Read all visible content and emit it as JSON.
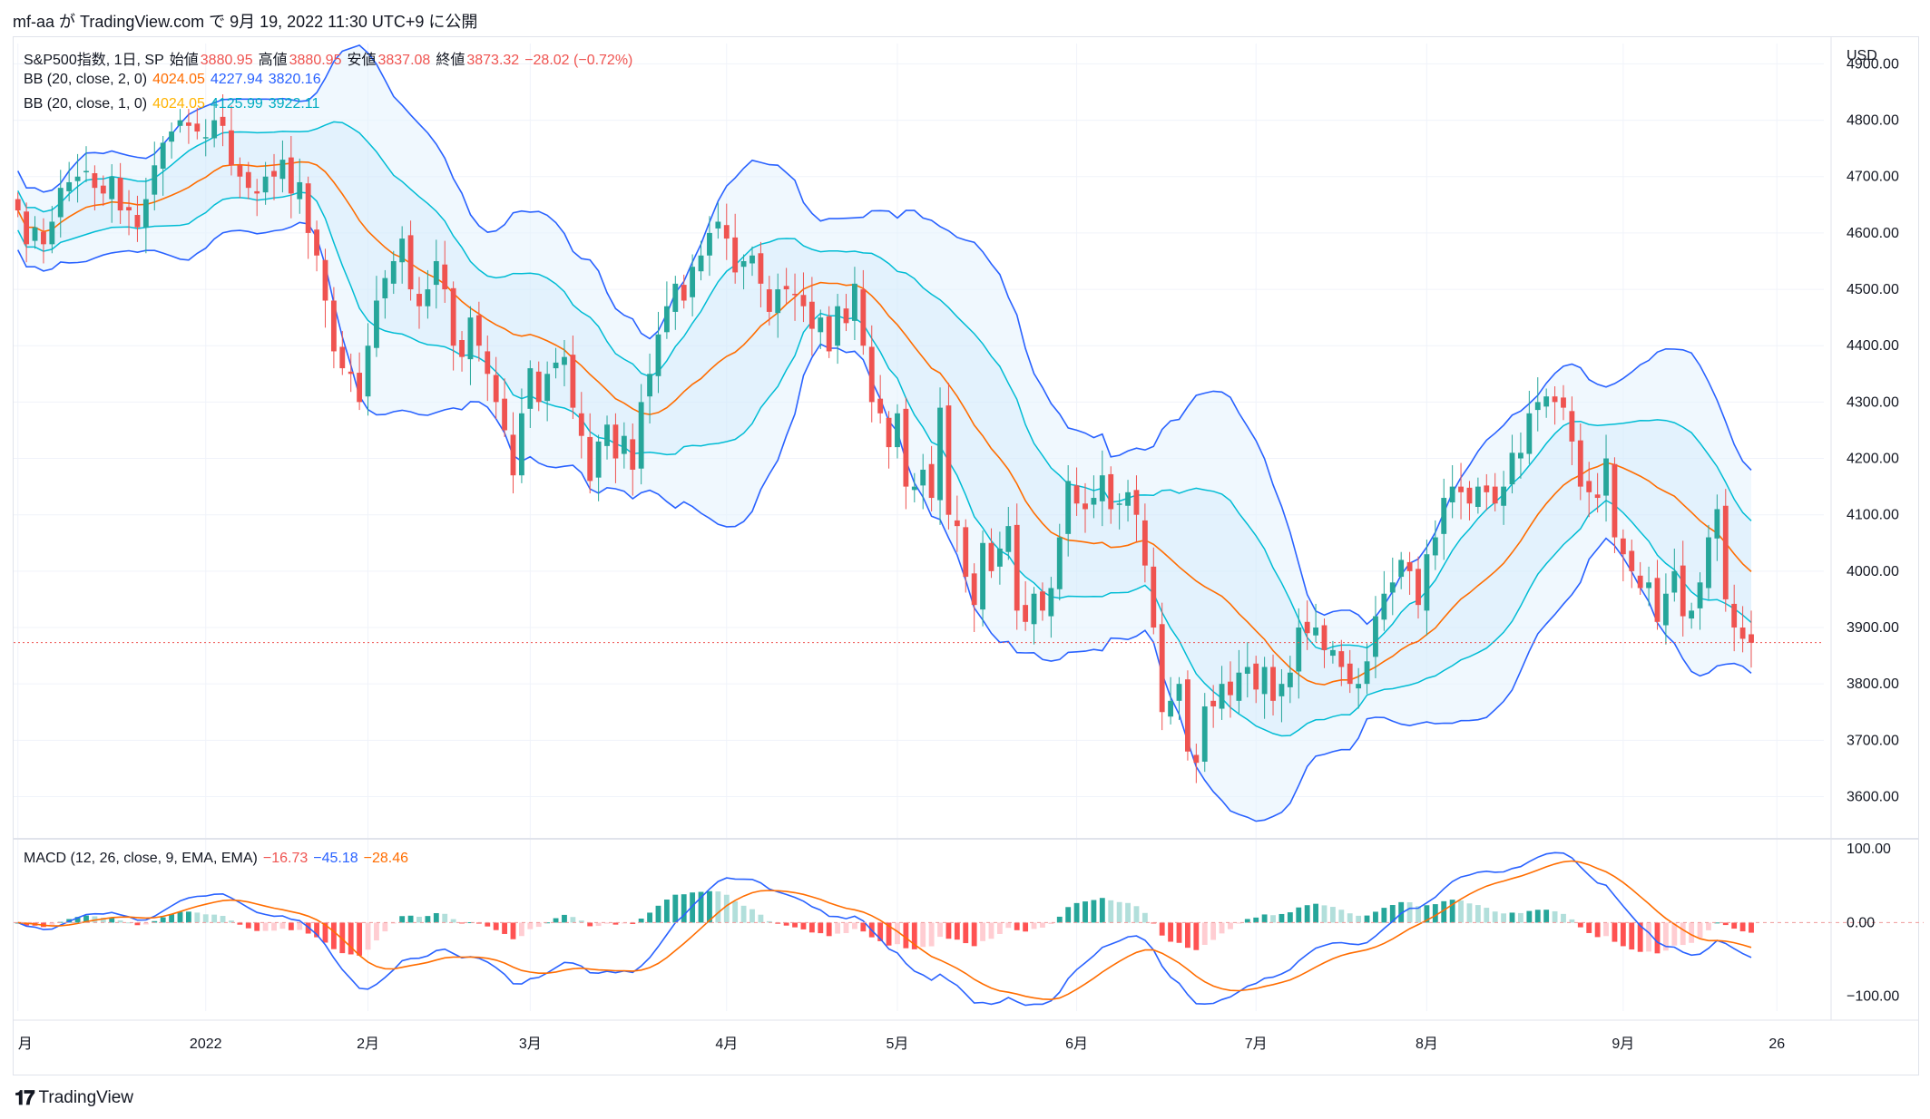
{
  "header": {
    "text": "mf-aa が TradingView.com で 9月 19, 2022 11:30 UTC+9 に公開"
  },
  "footer": {
    "brand": "TradingView",
    "logo": "tv-logo-icon"
  },
  "legend": {
    "main": {
      "symbol": "S&P500指数, 1日, SP",
      "open_label": "始値",
      "open": "3880.95",
      "high_label": "高値",
      "high": "3880.95",
      "low_label": "安値",
      "low": "3837.08",
      "close_label": "終値",
      "close": "3873.32",
      "change": "−28.02 (−0.72%)"
    },
    "bb2": {
      "label": "BB (20, close, 2, 0)",
      "basis": "4024.05",
      "upper": "4227.94",
      "lower": "3820.16"
    },
    "bb1": {
      "label": "BB (20, close, 1, 0)",
      "basis": "4024.05",
      "upper": "4125.99",
      "lower": "3922.11"
    },
    "macd": {
      "label": "MACD (12, 26, close, 9, EMA, EMA)",
      "hist": "−16.73",
      "macd": "−45.18",
      "signal": "−28.46"
    }
  },
  "colors": {
    "up": "#26a69a",
    "down": "#ef5350",
    "basis": "#ff6d00",
    "band_outer": "#2962ff",
    "band_inner": "#00bcd4",
    "fill": "#e3f2fd",
    "hist_up_strong": "#26a69a",
    "hist_up_weak": "#b2dfdb",
    "hist_dn_strong": "#ff5252",
    "hist_dn_weak": "#ffcdd2",
    "macd_line": "#2962ff",
    "signal_line": "#ff6d00"
  },
  "chart_data": [
    {
      "type": "candlestick",
      "currency": "USD",
      "ylim": [
        3530,
        4920
      ],
      "yticks": [
        3600,
        3700,
        3800,
        3900,
        4000,
        4100,
        4200,
        4300,
        4400,
        4500,
        4600,
        4700,
        4800,
        4900
      ],
      "ytick_labels": [
        "3600.00",
        "3700.00",
        "3800.00",
        "3900.00",
        "4000.00",
        "4100.00",
        "4200.00",
        "4300.00",
        "4400.00",
        "4500.00",
        "4600.00",
        "4700.00",
        "4800.00",
        "4900.00"
      ],
      "xticks": [
        {
          "label": "月",
          "bar": 0
        },
        {
          "label": "2022",
          "bar": 22
        },
        {
          "label": "2月",
          "bar": 41
        },
        {
          "label": "3月",
          "bar": 60
        },
        {
          "label": "4月",
          "bar": 83
        },
        {
          "label": "5月",
          "bar": 103
        },
        {
          "label": "6月",
          "bar": 124
        },
        {
          "label": "7月",
          "bar": 145
        },
        {
          "label": "8月",
          "bar": 165
        },
        {
          "label": "9月",
          "bar": 188
        },
        {
          "label": "26",
          "bar": 206
        }
      ],
      "total_slots": 212,
      "last_price_line": 3873.32,
      "close": [
        4640,
        4580,
        4610,
        4580,
        4620,
        4680,
        4690,
        4700,
        4710,
        4680,
        4670,
        4700,
        4640,
        4640,
        4610,
        4660,
        4720,
        4760,
        4780,
        4800,
        4790,
        4780,
        4770,
        4800,
        4790,
        4720,
        4700,
        4680,
        4670,
        4700,
        4700,
        4730,
        4670,
        4690,
        4600,
        4560,
        4480,
        4390,
        4360,
        4350,
        4300,
        4400,
        4480,
        4520,
        4550,
        4590,
        4500,
        4470,
        4500,
        4550,
        4500,
        4400,
        4380,
        4450,
        4400,
        4350,
        4300,
        4250,
        4170,
        4280,
        4360,
        4300,
        4350,
        4370,
        4380,
        4290,
        4240,
        4160,
        4230,
        4260,
        4200,
        4240,
        4180,
        4300,
        4350,
        4420,
        4470,
        4510,
        4480,
        4540,
        4560,
        4600,
        4620,
        4590,
        4530,
        4550,
        4560,
        4510,
        4460,
        4500,
        4500,
        4490,
        4470,
        4430,
        4450,
        4390,
        4470,
        4440,
        4510,
        4400,
        4300,
        4280,
        4220,
        4280,
        4150,
        4150,
        4180,
        4130,
        4290,
        4100,
        4080,
        3990,
        3940,
        4050,
        4000,
        4040,
        4080,
        3930,
        3910,
        3960,
        3930,
        3970,
        4060,
        4160,
        4120,
        4110,
        4130,
        4170,
        4110,
        4120,
        4140,
        4100,
        4010,
        3900,
        3750,
        3770,
        3800,
        3680,
        3660,
        3760,
        3760,
        3800,
        3780,
        3820,
        3830,
        3790,
        3830,
        3770,
        3800,
        3820,
        3900,
        3890,
        3900,
        3860,
        3860,
        3830,
        3800,
        3800,
        3840,
        3920,
        3960,
        3980,
        4020,
        4000,
        3940,
        4030,
        4060,
        4130,
        4150,
        4140,
        4120,
        4150,
        4140,
        4120,
        4150,
        4210,
        4210,
        4280,
        4300,
        4310,
        4300,
        4290,
        4230,
        4150,
        4140,
        4130,
        4200,
        4060,
        4030,
        4000,
        3970,
        3980,
        3910,
        3960,
        4000,
        3920,
        3930,
        3980,
        4060,
        4110,
        3950,
        3900,
        3880,
        3873
      ]
    },
    {
      "type": "histogram+line",
      "title": "MACD",
      "ylim": [
        -120,
        110
      ],
      "yticks": [
        -100,
        0,
        100
      ],
      "ytick_labels": [
        "−100.00",
        "0.00",
        "100.00"
      ]
    }
  ]
}
